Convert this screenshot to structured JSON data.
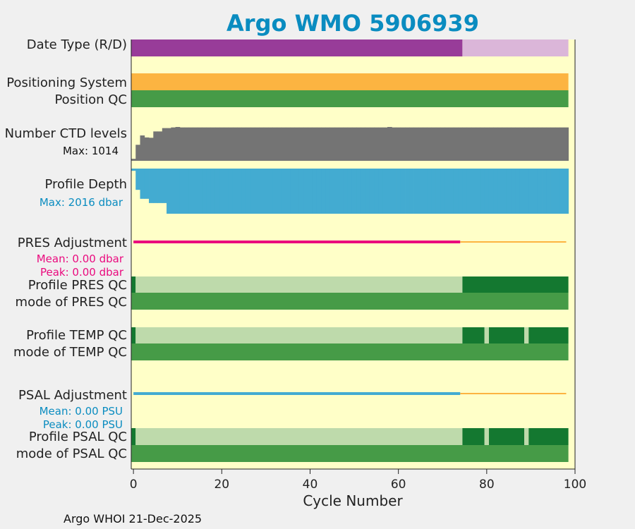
{
  "chart_data": {
    "type": "bar",
    "title": "Argo WMO 5906939",
    "xlabel": "Cycle Number",
    "xlim": [
      -0.5,
      100
    ],
    "xticks": [
      0,
      20,
      40,
      60,
      80,
      100
    ],
    "footer": "Argo WHOI 21-Dec-2025",
    "rows": {
      "date_type": {
        "label": "Date Type (R/D)",
        "segments": [
          {
            "from": -0.5,
            "to": 74.5,
            "status": "R"
          },
          {
            "from": 74.5,
            "to": 98.5,
            "status": "D"
          }
        ]
      },
      "positioning_system": {
        "label": "Positioning System",
        "segments": [
          {
            "from": -0.5,
            "to": 98.5,
            "status": "GPS"
          }
        ]
      },
      "position_qc": {
        "label": "Position QC",
        "segments": [
          {
            "from": -0.5,
            "to": 98.5,
            "status": "1"
          }
        ]
      },
      "ctd_levels": {
        "label": "Number CTD levels",
        "max_label": "Max: 1014",
        "max": 1014,
        "cycles": [
          0,
          1,
          2,
          3,
          4,
          5,
          6,
          7,
          8,
          9,
          10,
          11,
          12,
          13,
          14,
          15,
          16,
          17,
          18,
          19,
          20,
          21,
          22,
          23,
          24,
          25,
          26,
          27,
          28,
          29,
          30,
          31,
          32,
          33,
          34,
          35,
          36,
          37,
          38,
          39,
          40,
          41,
          42,
          43,
          44,
          45,
          46,
          47,
          48,
          49,
          50,
          51,
          52,
          53,
          54,
          55,
          56,
          57,
          58,
          59,
          60,
          61,
          62,
          63,
          64,
          65,
          66,
          67,
          68,
          69,
          70,
          71,
          72,
          73,
          74,
          75,
          76,
          77,
          78,
          79,
          80,
          81,
          82,
          83,
          84,
          85,
          86,
          87,
          88,
          89,
          90,
          91,
          92,
          93,
          94,
          95,
          96,
          97,
          98
        ],
        "values": [
          60,
          480,
          760,
          700,
          690,
          880,
          880,
          980,
          980,
          1000,
          1014,
          1000,
          1000,
          1000,
          1000,
          1000,
          1000,
          1000,
          1000,
          1000,
          1000,
          1000,
          1000,
          1000,
          1000,
          1000,
          1000,
          1000,
          1000,
          1000,
          1000,
          1000,
          1000,
          1000,
          1000,
          1000,
          1000,
          1000,
          1000,
          1000,
          1000,
          1000,
          1000,
          1000,
          1000,
          1000,
          1000,
          1000,
          1000,
          1000,
          1000,
          1000,
          1000,
          1000,
          1000,
          1000,
          1000,
          1000,
          1014,
          1000,
          1000,
          1000,
          1000,
          1000,
          1000,
          1000,
          1000,
          1000,
          1000,
          1000,
          1000,
          1000,
          1000,
          1000,
          1000,
          1000,
          1000,
          1000,
          1000,
          1000,
          1000,
          1000,
          1000,
          1000,
          1000,
          1000,
          1000,
          1000,
          1000,
          1000,
          1000,
          1000,
          1000,
          1000,
          1000,
          1000,
          1000,
          1000,
          1000
        ]
      },
      "profile_depth": {
        "label": "Profile Depth",
        "max_label": "Max: 2016 dbar",
        "max": 2016,
        "cycles": [
          0,
          1,
          2,
          3,
          4,
          5,
          6,
          7,
          8,
          9,
          10,
          11,
          12,
          13,
          14,
          15,
          16,
          17,
          18,
          19,
          20,
          21,
          22,
          23,
          24,
          25,
          26,
          27,
          28,
          29,
          30,
          31,
          32,
          33,
          34,
          35,
          36,
          37,
          38,
          39,
          40,
          41,
          42,
          43,
          44,
          45,
          46,
          47,
          48,
          49,
          50,
          51,
          52,
          53,
          54,
          55,
          56,
          57,
          58,
          59,
          60,
          61,
          62,
          63,
          64,
          65,
          66,
          67,
          68,
          69,
          70,
          71,
          72,
          73,
          74,
          75,
          76,
          77,
          78,
          79,
          80,
          81,
          82,
          83,
          84,
          85,
          86,
          87,
          88,
          89,
          90,
          91,
          92,
          93,
          94,
          95,
          96,
          97,
          98
        ],
        "values": [
          100,
          950,
          1350,
          1350,
          1540,
          1540,
          1540,
          1540,
          2016,
          2016,
          2016,
          2016,
          2016,
          2016,
          2016,
          2016,
          2016,
          2016,
          2016,
          2016,
          2016,
          2016,
          2016,
          2016,
          2016,
          2016,
          2016,
          2016,
          2016,
          2016,
          2016,
          2016,
          2016,
          2016,
          2016,
          2016,
          2016,
          2016,
          2016,
          2016,
          2016,
          2016,
          2016,
          2016,
          2016,
          2016,
          2016,
          2016,
          2016,
          2016,
          2016,
          2016,
          2016,
          2016,
          2016,
          2016,
          2016,
          2016,
          2016,
          2016,
          2016,
          2016,
          2016,
          2016,
          2016,
          2016,
          2016,
          2016,
          2016,
          2016,
          2016,
          2016,
          2016,
          2016,
          2016,
          2016,
          2016,
          2016,
          2016,
          2016,
          2016,
          2016,
          2016,
          2016,
          2016,
          2016,
          2016,
          2016,
          2016,
          2016,
          2016,
          2016,
          2016,
          2016,
          2016,
          2016,
          2016,
          2016,
          2016
        ]
      },
      "pres_adjustment": {
        "label": "PRES Adjustment",
        "mean_label": "Mean: 0.00 dbar",
        "peak_label": "Peak: 0.00 dbar",
        "segments": [
          {
            "from": 0,
            "to": 74,
            "status": "real-time"
          },
          {
            "from": 74,
            "to": 98,
            "status": "delayed"
          }
        ]
      },
      "profile_pres_qc": {
        "label": "Profile PRES QC",
        "segments": [
          {
            "from": -0.5,
            "to": 0.5,
            "status": "A"
          },
          {
            "from": 0.5,
            "to": 74.5,
            "status": "light"
          },
          {
            "from": 74.5,
            "to": 98.5,
            "status": "A"
          }
        ]
      },
      "mode_pres_qc": {
        "label": "mode of PRES QC",
        "segments": [
          {
            "from": -0.5,
            "to": 98.5,
            "status": "1"
          }
        ]
      },
      "profile_temp_qc": {
        "label": "Profile TEMP QC",
        "segments": [
          {
            "from": -0.5,
            "to": 0.5,
            "status": "A"
          },
          {
            "from": 0.5,
            "to": 74.5,
            "status": "light"
          },
          {
            "from": 74.5,
            "to": 79.5,
            "status": "A"
          },
          {
            "from": 79.5,
            "to": 80.5,
            "status": "light"
          },
          {
            "from": 80.5,
            "to": 88.5,
            "status": "A"
          },
          {
            "from": 88.5,
            "to": 89.5,
            "status": "light"
          },
          {
            "from": 89.5,
            "to": 98.5,
            "status": "A"
          }
        ]
      },
      "mode_temp_qc": {
        "label": "mode of TEMP QC",
        "segments": [
          {
            "from": -0.5,
            "to": 98.5,
            "status": "1"
          }
        ]
      },
      "psal_adjustment": {
        "label": "PSAL Adjustment",
        "mean_label": "Mean: 0.00 PSU",
        "peak_label": "Peak: 0.00 PSU",
        "segments": [
          {
            "from": 0,
            "to": 74,
            "status": "real-time"
          },
          {
            "from": 74,
            "to": 98,
            "status": "delayed"
          }
        ]
      },
      "profile_psal_qc": {
        "label": "Profile PSAL QC",
        "segments": [
          {
            "from": -0.5,
            "to": 0.5,
            "status": "A"
          },
          {
            "from": 0.5,
            "to": 74.5,
            "status": "light"
          },
          {
            "from": 74.5,
            "to": 79.5,
            "status": "A"
          },
          {
            "from": 79.5,
            "to": 80.5,
            "status": "light"
          },
          {
            "from": 80.5,
            "to": 88.5,
            "status": "A"
          },
          {
            "from": 88.5,
            "to": 89.5,
            "status": "light"
          },
          {
            "from": 89.5,
            "to": 98.5,
            "status": "A"
          }
        ]
      },
      "mode_psal_qc": {
        "label": "mode of PSAL QC",
        "segments": [
          {
            "from": -0.5,
            "to": 98.5,
            "status": "1"
          }
        ]
      }
    }
  },
  "colors": {
    "title": "#0a8cc0",
    "plot_bg": "#ffffc8",
    "R": "#983c99",
    "D": "#dbb6d9",
    "GPS": "#fcb441",
    "1": "#469b47",
    "A": "#147830",
    "light": "#bedaab",
    "ctd": "#747474",
    "depth": "#43abd1",
    "pres_rt": "#ea0a7e",
    "delayed": "#fcb441",
    "psal_rt": "#43abd1",
    "pres_text": "#ea0a7e",
    "psal_text": "#0a8cc0",
    "depth_text": "#0a8cc0"
  }
}
